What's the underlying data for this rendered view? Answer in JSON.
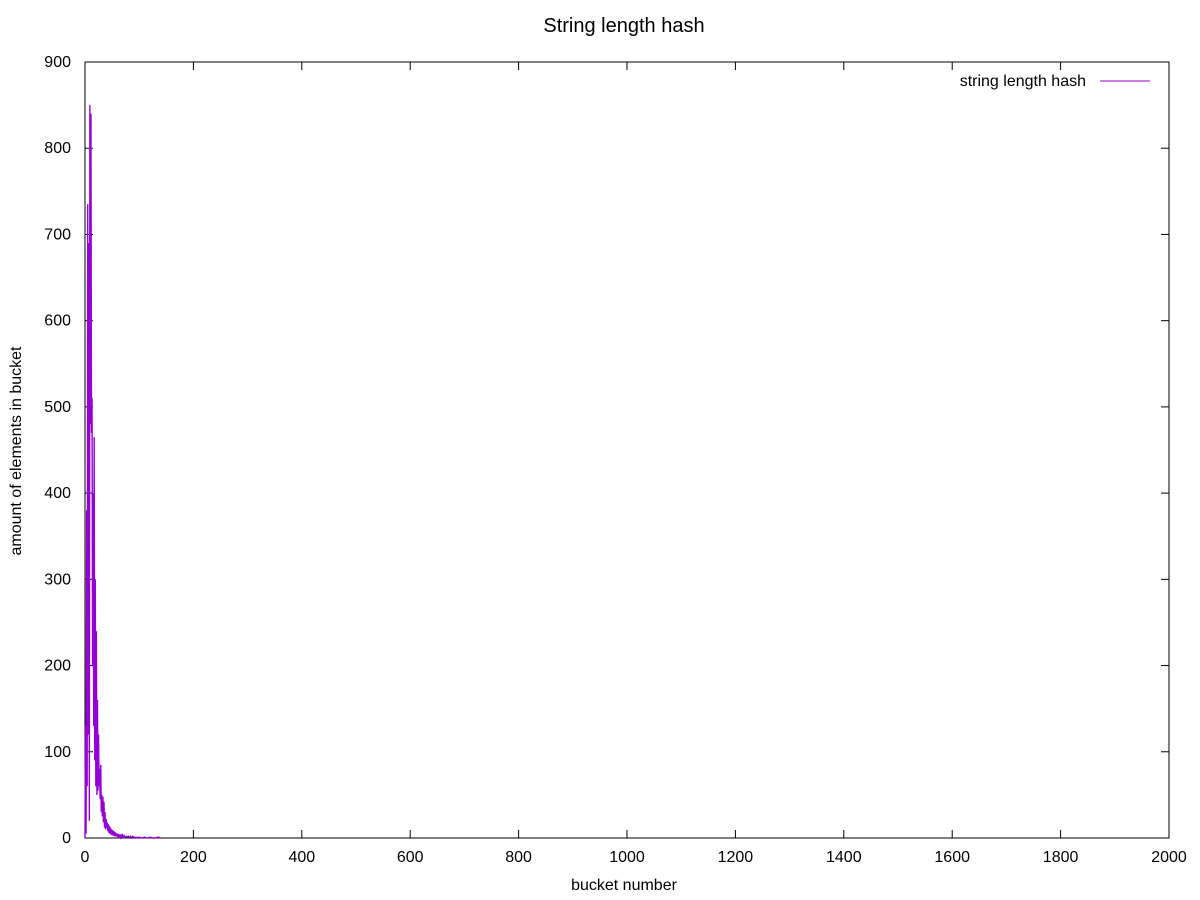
{
  "chart_data": {
    "type": "line",
    "title": "String length hash",
    "xlabel": "bucket number",
    "ylabel": "amount of elements in bucket",
    "xlim": [
      0,
      2000
    ],
    "ylim": [
      0,
      900
    ],
    "xticks": [
      0,
      200,
      400,
      600,
      800,
      1000,
      1200,
      1400,
      1600,
      1800,
      2000
    ],
    "yticks": [
      0,
      100,
      200,
      300,
      400,
      500,
      600,
      700,
      800,
      900
    ],
    "xtick_labels": [
      "0",
      "200",
      "400",
      "600",
      "800",
      "1000",
      "1200",
      "1400",
      "1600",
      "1800",
      "2000"
    ],
    "ytick_labels": [
      "0",
      "100",
      "200",
      "300",
      "400",
      "500",
      "600",
      "700",
      "800",
      "900"
    ],
    "grid": false,
    "legend_position": "top-right",
    "series": [
      {
        "name": "string length hash",
        "color": "#9400D3",
        "x": [
          0,
          1,
          2,
          3,
          4,
          5,
          6,
          7,
          8,
          9,
          10,
          11,
          12,
          13,
          14,
          15,
          16,
          17,
          18,
          19,
          20,
          21,
          22,
          23,
          24,
          25,
          26,
          27,
          28,
          29,
          30,
          31,
          32,
          33,
          34,
          35,
          36,
          37,
          38,
          39,
          40,
          41,
          42,
          43,
          44,
          45,
          46,
          47,
          48,
          49,
          50,
          51,
          52,
          53,
          54,
          55,
          56,
          57,
          58,
          59,
          60,
          61,
          62,
          63,
          64,
          65,
          66,
          67,
          68,
          69,
          70,
          72,
          74,
          76,
          78,
          80,
          82,
          84,
          86,
          88,
          90,
          92,
          94,
          96,
          98,
          100,
          105,
          110,
          115,
          120,
          125,
          130,
          135,
          140
        ],
        "values": [
          0,
          130,
          5,
          380,
          60,
          735,
          120,
          690,
          20,
          850,
          480,
          840,
          470,
          510,
          200,
          400,
          130,
          465,
          90,
          300,
          60,
          240,
          50,
          160,
          55,
          120,
          60,
          80,
          45,
          85,
          30,
          50,
          25,
          48,
          18,
          42,
          12,
          30,
          10,
          22,
          12,
          18,
          8,
          16,
          6,
          14,
          5,
          12,
          4,
          10,
          3,
          9,
          3,
          8,
          2,
          7,
          2,
          6,
          2,
          5,
          1,
          5,
          1,
          4,
          1,
          4,
          1,
          3,
          1,
          3,
          1,
          3,
          1,
          2,
          1,
          2,
          1,
          2,
          0,
          2,
          1,
          1,
          0,
          1,
          0,
          1,
          0,
          1,
          0,
          1,
          0,
          0,
          1,
          0
        ]
      }
    ]
  }
}
